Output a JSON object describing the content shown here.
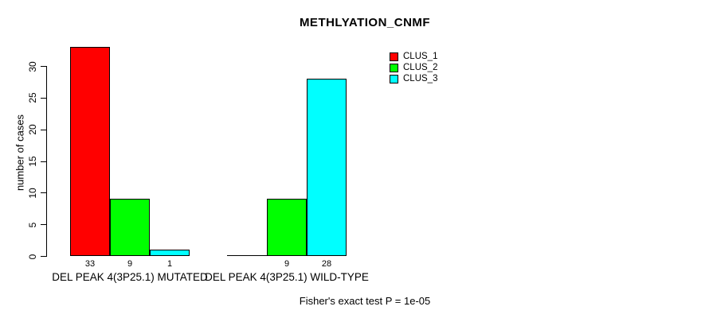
{
  "chart_data": {
    "type": "bar",
    "title": "METHLYATION_CNMF",
    "ylabel": "number of cases",
    "xlabel": "",
    "categories": [
      "DEL PEAK 4(3P25.1) MUTATED",
      "DEL PEAK 4(3P25.1) WILD-TYPE"
    ],
    "series": [
      {
        "name": "CLUS_1",
        "color": "#ff0000",
        "values": [
          33,
          0
        ]
      },
      {
        "name": "CLUS_2",
        "color": "#00ff00",
        "values": [
          9,
          9
        ]
      },
      {
        "name": "CLUS_3",
        "color": "#00ffff",
        "values": [
          1,
          28
        ]
      }
    ],
    "bar_value_labels": [
      [
        "33",
        "9",
        "1"
      ],
      [
        "",
        "9",
        "28"
      ]
    ],
    "y_ticks": [
      0,
      5,
      10,
      15,
      20,
      25,
      30
    ],
    "ylim": [
      0,
      33
    ],
    "grid": false,
    "legend_position": "top-right",
    "legend_entries": [
      "CLUS_1",
      "CLUS_2",
      "CLUS_3"
    ],
    "annotation": "Fisher's exact test P = 1e-05",
    "bar_border_color": "#000000",
    "background_color": "#ffffff"
  }
}
